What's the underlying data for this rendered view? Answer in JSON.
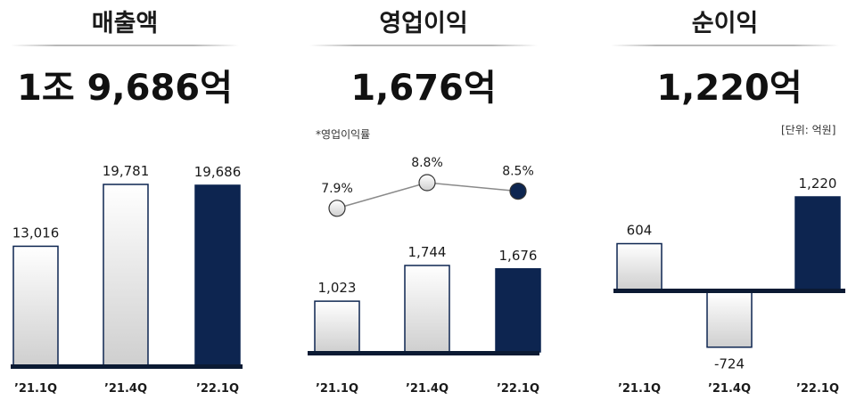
{
  "colors": {
    "highlight": "#0d2550",
    "bar_light_top": "#ffffff",
    "bar_light_bottom": "#cfcfcf",
    "baseline": "#0b1a33"
  },
  "panels": [
    {
      "title": "매출액",
      "total": "1조 9,686억"
    },
    {
      "title": "영업이익",
      "total": "1,676억",
      "rate_label": "*영업이익률"
    },
    {
      "title": "순이익",
      "total": "1,220억",
      "unit_label": "[단위: 억원]"
    }
  ],
  "chart_data": [
    {
      "type": "bar",
      "title": "매출액",
      "categories": [
        "’21.1Q",
        "’21.4Q",
        "’22.1Q"
      ],
      "values": [
        13016,
        19781,
        19686
      ],
      "value_labels": [
        "13,016",
        "19,781",
        "19,686"
      ],
      "highlight_index": 2
    },
    {
      "type": "bar",
      "title": "영업이익",
      "categories": [
        "’21.1Q",
        "’21.4Q",
        "’22.1Q"
      ],
      "values": [
        1023,
        1744,
        1676
      ],
      "value_labels": [
        "1,023",
        "1,744",
        "1,676"
      ],
      "highlight_index": 2,
      "line_series": {
        "name": "*영업이익률",
        "values": [
          7.9,
          8.8,
          8.5
        ],
        "value_labels": [
          "7.9%",
          "8.8%",
          "8.5%"
        ]
      }
    },
    {
      "type": "bar",
      "title": "순이익",
      "categories": [
        "’21.1Q",
        "’21.4Q",
        "’22.1Q"
      ],
      "values": [
        604,
        -724,
        1220
      ],
      "value_labels": [
        "604",
        "-724",
        "1,220"
      ],
      "highlight_index": 2
    }
  ]
}
